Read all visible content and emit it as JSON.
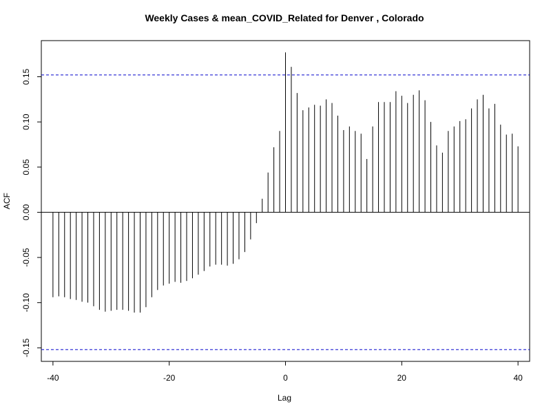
{
  "chart_data": {
    "type": "bar",
    "subtype": "acf-stem",
    "title": "Weekly Cases & mean_COVID_Related for Denver , Colorado",
    "xlabel": "Lag",
    "ylabel": "ACF",
    "xlim": [
      -42,
      42
    ],
    "ylim": [
      -0.165,
      0.19
    ],
    "x_ticks": [
      -40,
      -20,
      0,
      20,
      40
    ],
    "x_tick_labels": [
      "-40",
      "-20",
      "0",
      "20",
      "40"
    ],
    "y_ticks": [
      -0.15,
      -0.1,
      -0.05,
      0.0,
      0.05,
      0.1,
      0.15
    ],
    "y_tick_labels": [
      "-0.15",
      "-0.10",
      "-0.05",
      "0.00",
      "0.05",
      "0.10",
      "0.15"
    ],
    "confidence_bound": 0.152,
    "confidence_color": "#0000cc",
    "line_color": "#000000",
    "lags": [
      -40,
      -39,
      -38,
      -37,
      -36,
      -35,
      -34,
      -33,
      -32,
      -31,
      -30,
      -29,
      -28,
      -27,
      -26,
      -25,
      -24,
      -23,
      -22,
      -21,
      -20,
      -19,
      -18,
      -17,
      -16,
      -15,
      -14,
      -13,
      -12,
      -11,
      -10,
      -9,
      -8,
      -7,
      -6,
      -5,
      -4,
      -3,
      -2,
      -1,
      0,
      1,
      2,
      3,
      4,
      5,
      6,
      7,
      8,
      9,
      10,
      11,
      12,
      13,
      14,
      15,
      16,
      17,
      18,
      19,
      20,
      21,
      22,
      23,
      24,
      25,
      26,
      27,
      28,
      29,
      30,
      31,
      32,
      33,
      34,
      35,
      36,
      37,
      38,
      39,
      40
    ],
    "values": [
      -0.094,
      -0.093,
      -0.094,
      -0.096,
      -0.097,
      -0.099,
      -0.1,
      -0.104,
      -0.108,
      -0.11,
      -0.109,
      -0.108,
      -0.108,
      -0.109,
      -0.111,
      -0.111,
      -0.105,
      -0.094,
      -0.086,
      -0.081,
      -0.079,
      -0.077,
      -0.078,
      -0.076,
      -0.073,
      -0.069,
      -0.065,
      -0.06,
      -0.058,
      -0.058,
      -0.059,
      -0.057,
      -0.052,
      -0.044,
      -0.03,
      -0.012,
      0.015,
      0.044,
      0.072,
      0.09,
      0.177,
      0.161,
      0.132,
      0.113,
      0.116,
      0.119,
      0.118,
      0.125,
      0.121,
      0.107,
      0.091,
      0.095,
      0.09,
      0.087,
      0.059,
      0.095,
      0.122,
      0.122,
      0.122,
      0.134,
      0.129,
      0.121,
      0.13,
      0.135,
      0.124,
      0.1,
      0.074,
      0.066,
      0.09,
      0.095,
      0.101,
      0.103,
      0.115,
      0.125,
      0.13,
      0.115,
      0.12,
      0.097,
      0.086,
      0.087,
      0.073
    ]
  }
}
